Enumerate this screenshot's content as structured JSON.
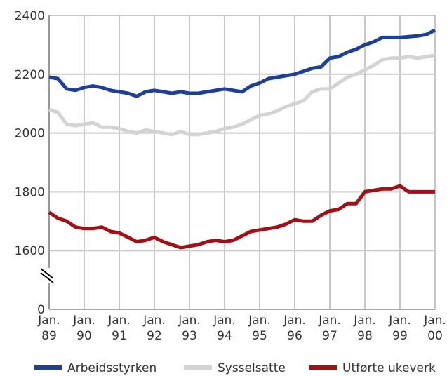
{
  "chart_data": {
    "type": "line",
    "x": [
      0,
      3,
      6,
      9,
      12,
      15,
      18,
      21,
      24,
      27,
      30,
      33,
      36,
      39,
      42,
      45,
      48,
      51,
      54,
      57,
      60,
      63,
      66,
      69,
      72,
      75,
      78,
      81,
      84,
      87,
      90,
      93,
      96,
      99,
      102,
      105,
      108,
      111,
      114,
      117,
      120,
      123,
      126,
      129,
      132
    ],
    "xlim": [
      0,
      132
    ],
    "xticks": [
      {
        "value": 0,
        "label": "Jan. 89"
      },
      {
        "value": 12,
        "label": "Jan. 90"
      },
      {
        "value": 24,
        "label": "Jan. 91"
      },
      {
        "value": 36,
        "label": "Jan. 92"
      },
      {
        "value": 48,
        "label": "Jan. 93"
      },
      {
        "value": 60,
        "label": "Jan. 94"
      },
      {
        "value": 72,
        "label": "Jan. 95"
      },
      {
        "value": 84,
        "label": "Jan. 96"
      },
      {
        "value": 96,
        "label": "Jan. 97"
      },
      {
        "value": 108,
        "label": "Jan. 98"
      },
      {
        "value": 120,
        "label": "Jan. 99"
      },
      {
        "value": 132,
        "label": "Jan. 00"
      }
    ],
    "ylim": [
      1400,
      2400
    ],
    "yticks": [
      {
        "value": 1400,
        "label": "0"
      },
      1600,
      1800,
      2000,
      2200,
      2400
    ],
    "axis_break": true,
    "grid": true,
    "legend": "bottom",
    "series": [
      {
        "name": "Arbeidsstyrken",
        "color": "#1d3f99",
        "values": [
          2190,
          2185,
          2150,
          2145,
          2155,
          2160,
          2155,
          2145,
          2140,
          2135,
          2125,
          2140,
          2145,
          2140,
          2135,
          2140,
          2135,
          2135,
          2140,
          2145,
          2150,
          2145,
          2140,
          2160,
          2170,
          2185,
          2190,
          2195,
          2200,
          2210,
          2220,
          2225,
          2255,
          2260,
          2275,
          2285,
          2300,
          2310,
          2325,
          2325,
          2325,
          2328,
          2330,
          2335,
          2350
        ]
      },
      {
        "name": "Sysselsatte",
        "color": "#d3d3d3",
        "values": [
          2080,
          2070,
          2030,
          2025,
          2030,
          2035,
          2020,
          2020,
          2015,
          2005,
          2000,
          2010,
          2005,
          2000,
          1995,
          2005,
          1995,
          1995,
          2000,
          2005,
          2015,
          2020,
          2030,
          2045,
          2060,
          2065,
          2075,
          2090,
          2100,
          2110,
          2140,
          2150,
          2150,
          2170,
          2190,
          2200,
          2215,
          2230,
          2250,
          2255,
          2255,
          2260,
          2255,
          2260,
          2265
        ]
      },
      {
        "name": "Utførte ukeverk",
        "color": "#a50e14",
        "values": [
          1730,
          1710,
          1700,
          1680,
          1675,
          1675,
          1680,
          1665,
          1660,
          1645,
          1630,
          1635,
          1645,
          1630,
          1620,
          1610,
          1615,
          1620,
          1630,
          1635,
          1630,
          1635,
          1650,
          1665,
          1670,
          1675,
          1680,
          1690,
          1705,
          1700,
          1700,
          1720,
          1735,
          1740,
          1760,
          1760,
          1800,
          1805,
          1810,
          1810,
          1820,
          1800,
          1800,
          1800,
          1800
        ]
      }
    ]
  }
}
